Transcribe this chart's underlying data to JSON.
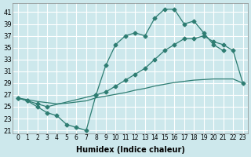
{
  "title": "",
  "xlabel": "Humidex (Indice chaleur)",
  "ylabel": "",
  "bg_color": "#cde8ec",
  "grid_color": "#ffffff",
  "line_color": "#2e7d72",
  "xlim": [
    -0.5,
    23.5
  ],
  "ylim": [
    20.5,
    42.5
  ],
  "xticks": [
    0,
    1,
    2,
    3,
    4,
    5,
    6,
    7,
    8,
    9,
    10,
    11,
    12,
    13,
    14,
    15,
    16,
    17,
    18,
    19,
    20,
    21,
    22,
    23
  ],
  "yticks": [
    21,
    23,
    25,
    27,
    29,
    31,
    33,
    35,
    37,
    39,
    41
  ],
  "line1_x": [
    0,
    1,
    2,
    3,
    4,
    5,
    6,
    7,
    8,
    9,
    10,
    11,
    12,
    13,
    14,
    15,
    16,
    17,
    18,
    19,
    20,
    21
  ],
  "line1_y": [
    26.5,
    26.0,
    25.0,
    24.0,
    23.5,
    22.0,
    21.5,
    21.0,
    27.0,
    32.0,
    35.5,
    37.0,
    37.5,
    37.0,
    40.0,
    41.5,
    41.5,
    39.0,
    39.5,
    37.5,
    35.5,
    34.5
  ],
  "line2_x": [
    0,
    1,
    2,
    3,
    8,
    9,
    10,
    11,
    12,
    13,
    14,
    15,
    16,
    17,
    18,
    19,
    20,
    21,
    22,
    23
  ],
  "line2_y": [
    26.5,
    26.0,
    25.5,
    25.0,
    27.0,
    27.5,
    28.5,
    29.5,
    30.5,
    31.5,
    33.0,
    34.5,
    35.5,
    36.5,
    36.5,
    37.0,
    36.0,
    35.5,
    34.5,
    29.0
  ],
  "line3_x": [
    0,
    1,
    2,
    3,
    4,
    5,
    6,
    7,
    8,
    9,
    10,
    11,
    12,
    13,
    14,
    15,
    16,
    17,
    18,
    19,
    20,
    21,
    22,
    23
  ],
  "line3_y": [
    26.5,
    26.2,
    25.9,
    25.7,
    25.5,
    25.6,
    25.8,
    26.0,
    26.5,
    26.8,
    27.1,
    27.4,
    27.8,
    28.1,
    28.5,
    28.8,
    29.1,
    29.3,
    29.5,
    29.6,
    29.7,
    29.7,
    29.7,
    29.0
  ]
}
